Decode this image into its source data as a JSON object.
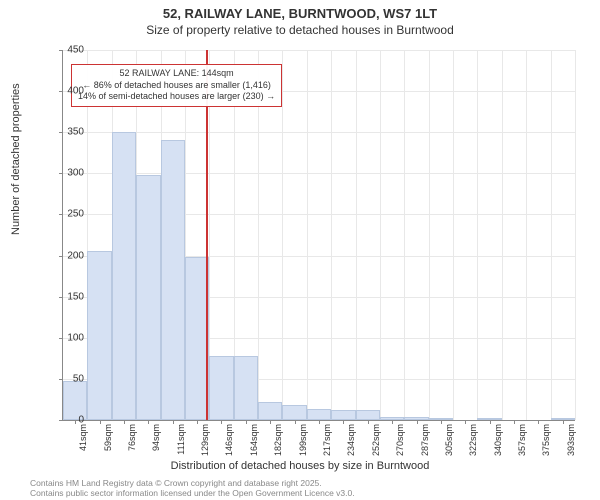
{
  "title": {
    "line1": "52, RAILWAY LANE, BURNTWOOD, WS7 1LT",
    "line2": "Size of property relative to detached houses in Burntwood"
  },
  "chart": {
    "type": "histogram",
    "ylabel": "Number of detached properties",
    "xlabel": "Distribution of detached houses by size in Burntwood",
    "ylim": [
      0,
      450
    ],
    "ytick_step": 50,
    "xticks": [
      "41sqm",
      "59sqm",
      "76sqm",
      "94sqm",
      "111sqm",
      "129sqm",
      "146sqm",
      "164sqm",
      "182sqm",
      "199sqm",
      "217sqm",
      "234sqm",
      "252sqm",
      "270sqm",
      "287sqm",
      "305sqm",
      "322sqm",
      "340sqm",
      "357sqm",
      "375sqm",
      "393sqm"
    ],
    "bars": [
      48,
      205,
      350,
      298,
      340,
      198,
      78,
      78,
      22,
      18,
      14,
      12,
      12,
      4,
      4,
      2,
      0,
      2,
      0,
      0,
      2
    ],
    "bar_color": "#d6e1f3",
    "bar_border": "#b8c8e0",
    "grid_color": "#e8e8e8",
    "axis_color": "#888888",
    "background_color": "#ffffff",
    "marker_line": {
      "x_index": 5.88,
      "color": "#cc3333"
    },
    "annotation": {
      "line1": "52 RAILWAY LANE: 144sqm",
      "line2": "← 86% of detached houses are smaller (1,416)",
      "line3": "14% of semi-detached houses are larger (230) →",
      "border_color": "#cc3333"
    }
  },
  "footer": {
    "line1": "Contains HM Land Registry data © Crown copyright and database right 2025.",
    "line2": "Contains public sector information licensed under the Open Government Licence v3.0."
  }
}
